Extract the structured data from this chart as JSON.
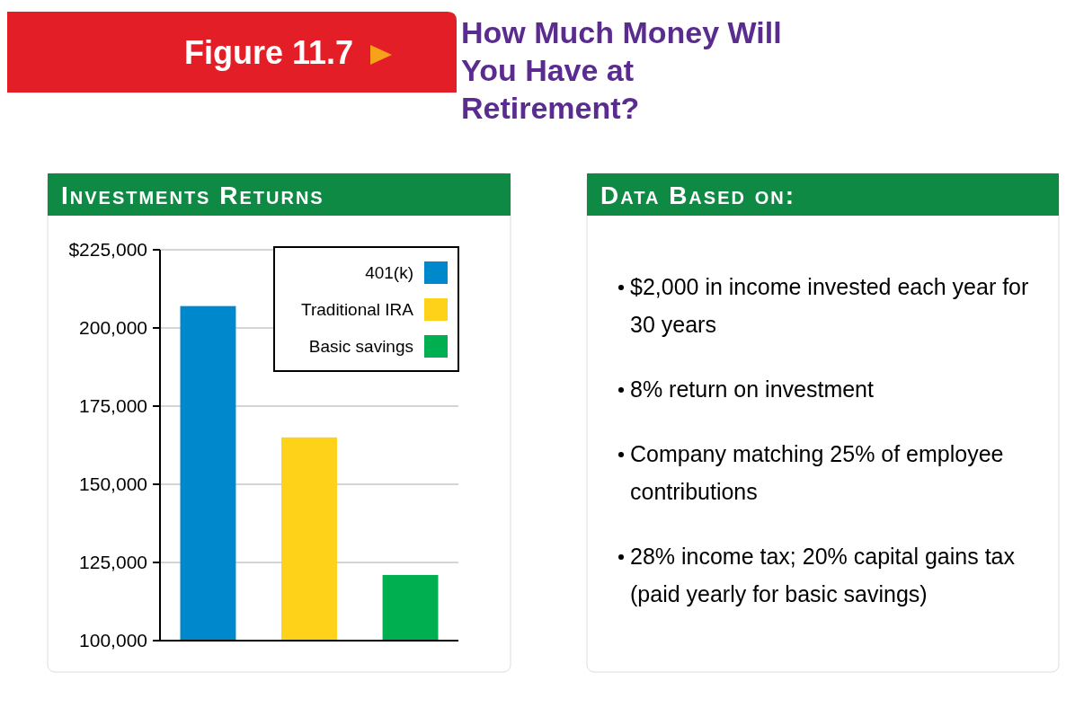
{
  "chart_data": [
    {
      "type": "bar",
      "title": "How Much Money Will You Have at Retirement?",
      "subtitle": "Investments Returns",
      "annotations": [
        "Figure 11.7"
      ],
      "categories": [
        null,
        null,
        null
      ],
      "stacked": true,
      "series": [
        {
          "name": "401(k)",
          "color": "#0088cc",
          "values": [
            207000,
            null,
            null
          ]
        },
        {
          "name": "Traditional IRA",
          "color": "#ffd21a",
          "values": [
            null,
            165000,
            null
          ]
        },
        {
          "name": "Basic savings",
          "color": "#00b050",
          "values": [
            null,
            null,
            121000
          ]
        }
      ],
      "ylim": [
        100000,
        225000
      ],
      "yticks": [
        {
          "value": 100000,
          "label": "100,000"
        },
        {
          "value": 125000,
          "label": "125,000"
        },
        {
          "value": 150000,
          "label": "150,000"
        },
        {
          "value": 175000,
          "label": "175,000"
        },
        {
          "value": 200000,
          "label": "200,000"
        },
        {
          "value": 225000,
          "label": "$225,000"
        }
      ],
      "grid": "y",
      "legend": "top right"
    },
    {
      "type": "other",
      "title": "Data Based on:",
      "annotations": [
        "$2,000 in income invested each year for 30 years",
        "8% return on investment",
        "Company matching 25% of employee contributions",
        "28% income tax; 20% capital gains tax (paid yearly for basic savings)"
      ]
    }
  ]
}
